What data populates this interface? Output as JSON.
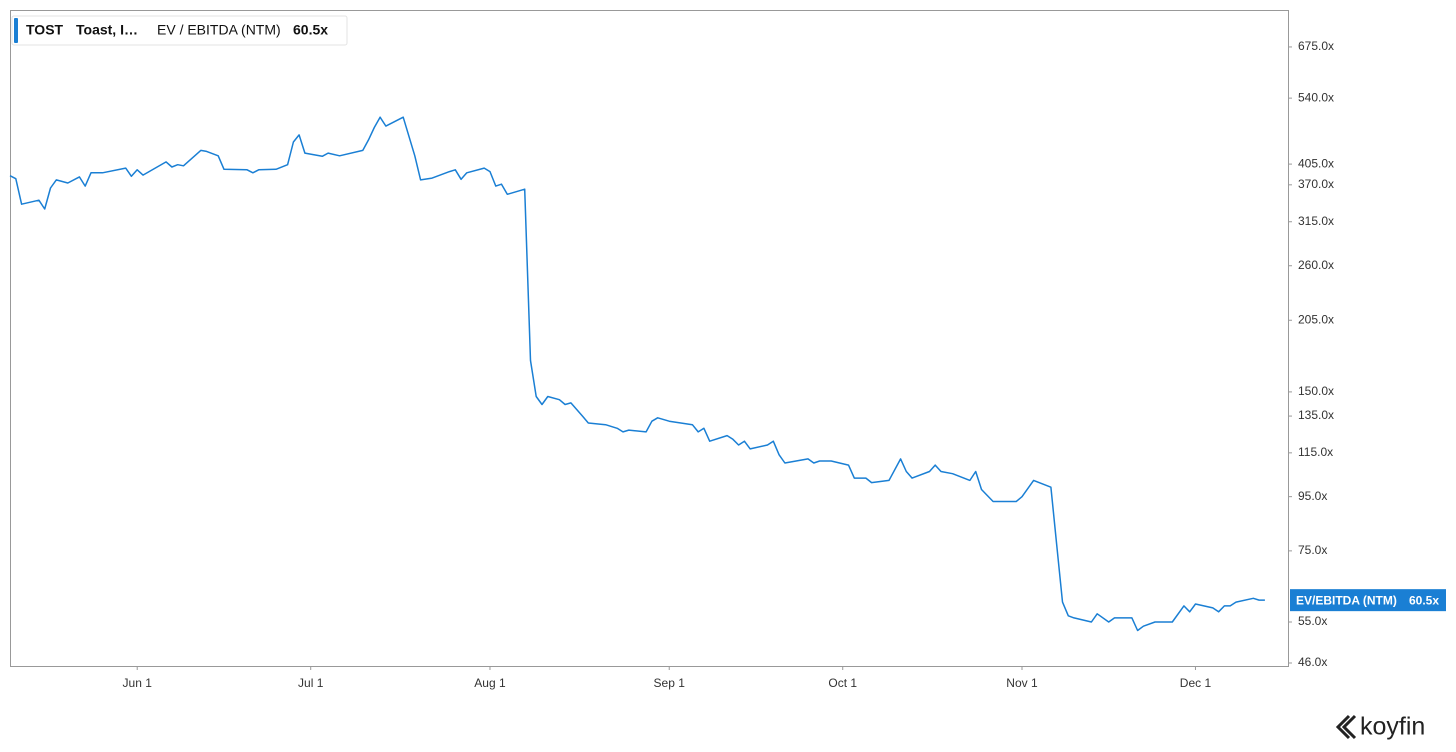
{
  "chart_data": {
    "type": "line",
    "ticker": "TOST",
    "company": "Toast, I…",
    "log_scale": true,
    "axis_tag": "EV/EBITDA (NTM)",
    "last_value_label": "60.5x",
    "logo": "koyfin",
    "xlim": [
      "May 10",
      "Dec 17"
    ],
    "xticks": [
      "Jun 1",
      "Jul 1",
      "Aug 1",
      "Sep 1",
      "Oct 1",
      "Nov 1",
      "Dec 1"
    ],
    "ylim": [
      45.4,
      793
    ],
    "yticks": [
      {
        "value": 675,
        "label": "675.0x"
      },
      {
        "value": 540,
        "label": "540.0x"
      },
      {
        "value": 405,
        "label": "405.0x"
      },
      {
        "value": 370,
        "label": "370.0x"
      },
      {
        "value": 315,
        "label": "315.0x"
      },
      {
        "value": 260,
        "label": "260.0x"
      },
      {
        "value": 205,
        "label": "205.0x"
      },
      {
        "value": 150,
        "label": "150.0x"
      },
      {
        "value": 135,
        "label": "135.0x"
      },
      {
        "value": 115,
        "label": "115.0x"
      },
      {
        "value": 95,
        "label": "95.0x"
      },
      {
        "value": 75,
        "label": "75.0x"
      },
      {
        "value": 55,
        "label": "55.0x"
      },
      {
        "value": 46,
        "label": "46.0x"
      }
    ],
    "x": [
      "May 10",
      "May 11",
      "May 12",
      "May 15",
      "May 16",
      "May 17",
      "May 18",
      "May 20",
      "May 22",
      "May 23",
      "May 24",
      "May 26",
      "May 30",
      "May 31",
      "Jun 1",
      "Jun 2",
      "Jun 6",
      "Jun 7",
      "Jun 8",
      "Jun 9",
      "Jun 12",
      "Jun 13",
      "Jun 15",
      "Jun 16",
      "Jun 20",
      "Jun 21",
      "Jun 22",
      "Jun 25",
      "Jun 27",
      "Jun 28",
      "Jun 29",
      "Jun 30",
      "Jul 3",
      "Jul 4",
      "Jul 6",
      "Jul 10",
      "Jul 11",
      "Jul 12",
      "Jul 13",
      "Jul 14",
      "Jul 17",
      "Jul 19",
      "Jul 20",
      "Jul 22",
      "Jul 25",
      "Jul 26",
      "Jul 27",
      "Jul 28",
      "Jul 31",
      "Aug 1",
      "Aug 2",
      "Aug 3",
      "Aug 4",
      "Aug 7",
      "Aug 8",
      "Aug 9",
      "Aug 10",
      "Aug 11",
      "Aug 13",
      "Aug 14",
      "Aug 15",
      "Aug 17",
      "Aug 18",
      "Aug 21",
      "Aug 23",
      "Aug 24",
      "Aug 25",
      "Aug 28",
      "Aug 29",
      "Aug 30",
      "Sep 1",
      "Sep 5",
      "Sep 6",
      "Sep 7",
      "Sep 8",
      "Sep 11",
      "Sep 12",
      "Sep 13",
      "Sep 14",
      "Sep 15",
      "Sep 18",
      "Sep 19",
      "Sep 20",
      "Sep 21",
      "Sep 25",
      "Sep 26",
      "Sep 27",
      "Sep 29",
      "Oct 2",
      "Oct 3",
      "Oct 5",
      "Oct 6",
      "Oct 9",
      "Oct 11",
      "Oct 12",
      "Oct 13",
      "Oct 16",
      "Oct 17",
      "Oct 18",
      "Oct 20",
      "Oct 23",
      "Oct 24",
      "Oct 25",
      "Oct 27",
      "Oct 31",
      "Nov 1",
      "Nov 3",
      "Nov 6",
      "Nov 7",
      "Nov 8",
      "Nov 9",
      "Nov 10",
      "Nov 13",
      "Nov 14",
      "Nov 16",
      "Nov 17",
      "Nov 20",
      "Nov 21",
      "Nov 22",
      "Nov 24",
      "Nov 27",
      "Nov 29",
      "Nov 30",
      "Dec 1",
      "Dec 4",
      "Dec 5",
      "Dec 6",
      "Dec 7",
      "Dec 8",
      "Dec 11",
      "Dec 12",
      "Dec 13"
    ],
    "series": [
      {
        "name": "EV / EBITDA (NTM)",
        "color": "#1a7fd4",
        "values": [
          385,
          380,
          340,
          346,
          333,
          365,
          378,
          373,
          383,
          368,
          390,
          390,
          398,
          384,
          395,
          386,
          409,
          400,
          404,
          402,
          430,
          428,
          420,
          396,
          395,
          390,
          395,
          396,
          404,
          446,
          460,
          425,
          419,
          425,
          420,
          430,
          450,
          475,
          497,
          478,
          497,
          420,
          378,
          381,
          392,
          395,
          379,
          390,
          398,
          392,
          368,
          371,
          355,
          363,
          172,
          147,
          142,
          147,
          145,
          142,
          143,
          135,
          131,
          130,
          128,
          126,
          127,
          126,
          132,
          134,
          132,
          130,
          126,
          128,
          121,
          124,
          122,
          119,
          121,
          117,
          119,
          121,
          114,
          110,
          112,
          110,
          111,
          111,
          109,
          103,
          103,
          101,
          102,
          112,
          106,
          103,
          106,
          109,
          106,
          105,
          102,
          106,
          98,
          93,
          93,
          95,
          102,
          99,
          77,
          60,
          56.5,
          56,
          55,
          57,
          55,
          56,
          56,
          53,
          54,
          55,
          55,
          59,
          57.5,
          59.5,
          58.5,
          57.5,
          59,
          59,
          60,
          61,
          60.5,
          60.5
        ]
      }
    ]
  }
}
